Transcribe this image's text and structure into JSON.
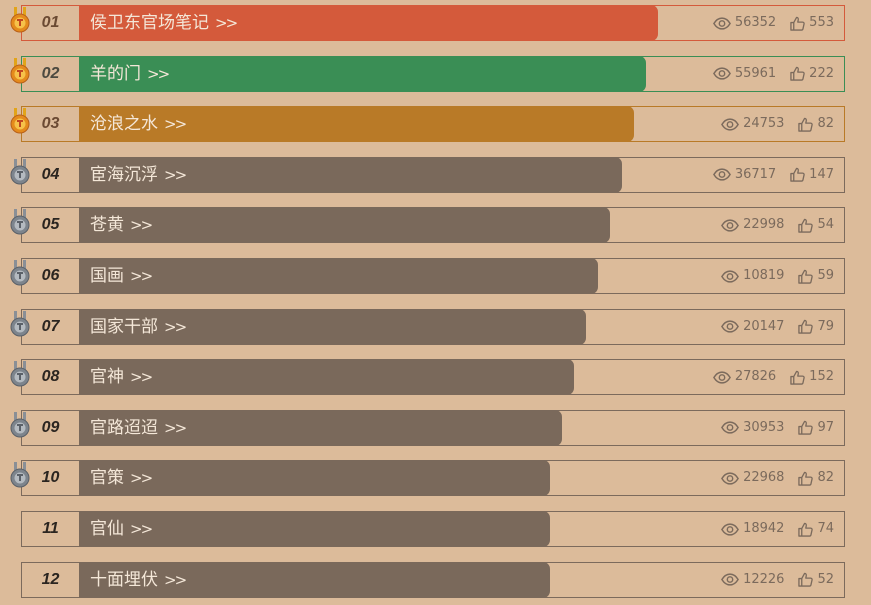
{
  "colors": {
    "gold": "#d45a3b",
    "silver": "#3a8e55",
    "bronze": "#b97a27",
    "default": "#7a695b"
  },
  "rows": [
    {
      "rank": "01",
      "title": "侯卫东官场笔记",
      "arrow": ">>",
      "views": "56352",
      "likes": "553",
      "tier": "gold",
      "bar_percent": 77.2,
      "medal": "gold"
    },
    {
      "rank": "02",
      "title": "羊的门",
      "arrow": ">>",
      "views": "55961",
      "likes": "222",
      "tier": "silver",
      "bar_percent": 75.7,
      "medal": "gold"
    },
    {
      "rank": "03",
      "title": "沧浪之水",
      "arrow": ">>",
      "views": "24753",
      "likes": "82",
      "tier": "bronze",
      "bar_percent": 74.3,
      "medal": "gold"
    },
    {
      "rank": "04",
      "title": "宦海沉浮",
      "arrow": ">>",
      "views": "36717",
      "likes": "147",
      "tier": "default",
      "bar_percent": 72.8,
      "medal": "silver"
    },
    {
      "rank": "05",
      "title": "苍黄",
      "arrow": ">>",
      "views": "22998",
      "likes": "54",
      "tier": "default",
      "bar_percent": 71.4,
      "medal": "silver"
    },
    {
      "rank": "06",
      "title": "国画",
      "arrow": ">>",
      "views": "10819",
      "likes": "59",
      "tier": "default",
      "bar_percent": 69.9,
      "medal": "silver"
    },
    {
      "rank": "07",
      "title": "国家干部",
      "arrow": ">>",
      "views": "20147",
      "likes": "79",
      "tier": "default",
      "bar_percent": 68.4,
      "medal": "silver"
    },
    {
      "rank": "08",
      "title": "官神",
      "arrow": ">>",
      "views": "27826",
      "likes": "152",
      "tier": "default",
      "bar_percent": 67.0,
      "medal": "silver"
    },
    {
      "rank": "09",
      "title": "官路迢迢",
      "arrow": ">>",
      "views": "30953",
      "likes": "97",
      "tier": "default",
      "bar_percent": 65.5,
      "medal": "silver"
    },
    {
      "rank": "10",
      "title": "官策",
      "arrow": ">>",
      "views": "22968",
      "likes": "82",
      "tier": "default",
      "bar_percent": 64.1,
      "medal": "silver"
    },
    {
      "rank": "11",
      "title": "官仙",
      "arrow": ">>",
      "views": "18942",
      "likes": "74",
      "tier": "default",
      "bar_percent": 64.1,
      "medal": "none"
    },
    {
      "rank": "12",
      "title": "十面埋伏",
      "arrow": ">>",
      "views": "12226",
      "likes": "52",
      "tier": "default",
      "bar_percent": 64.1,
      "medal": "none"
    }
  ]
}
